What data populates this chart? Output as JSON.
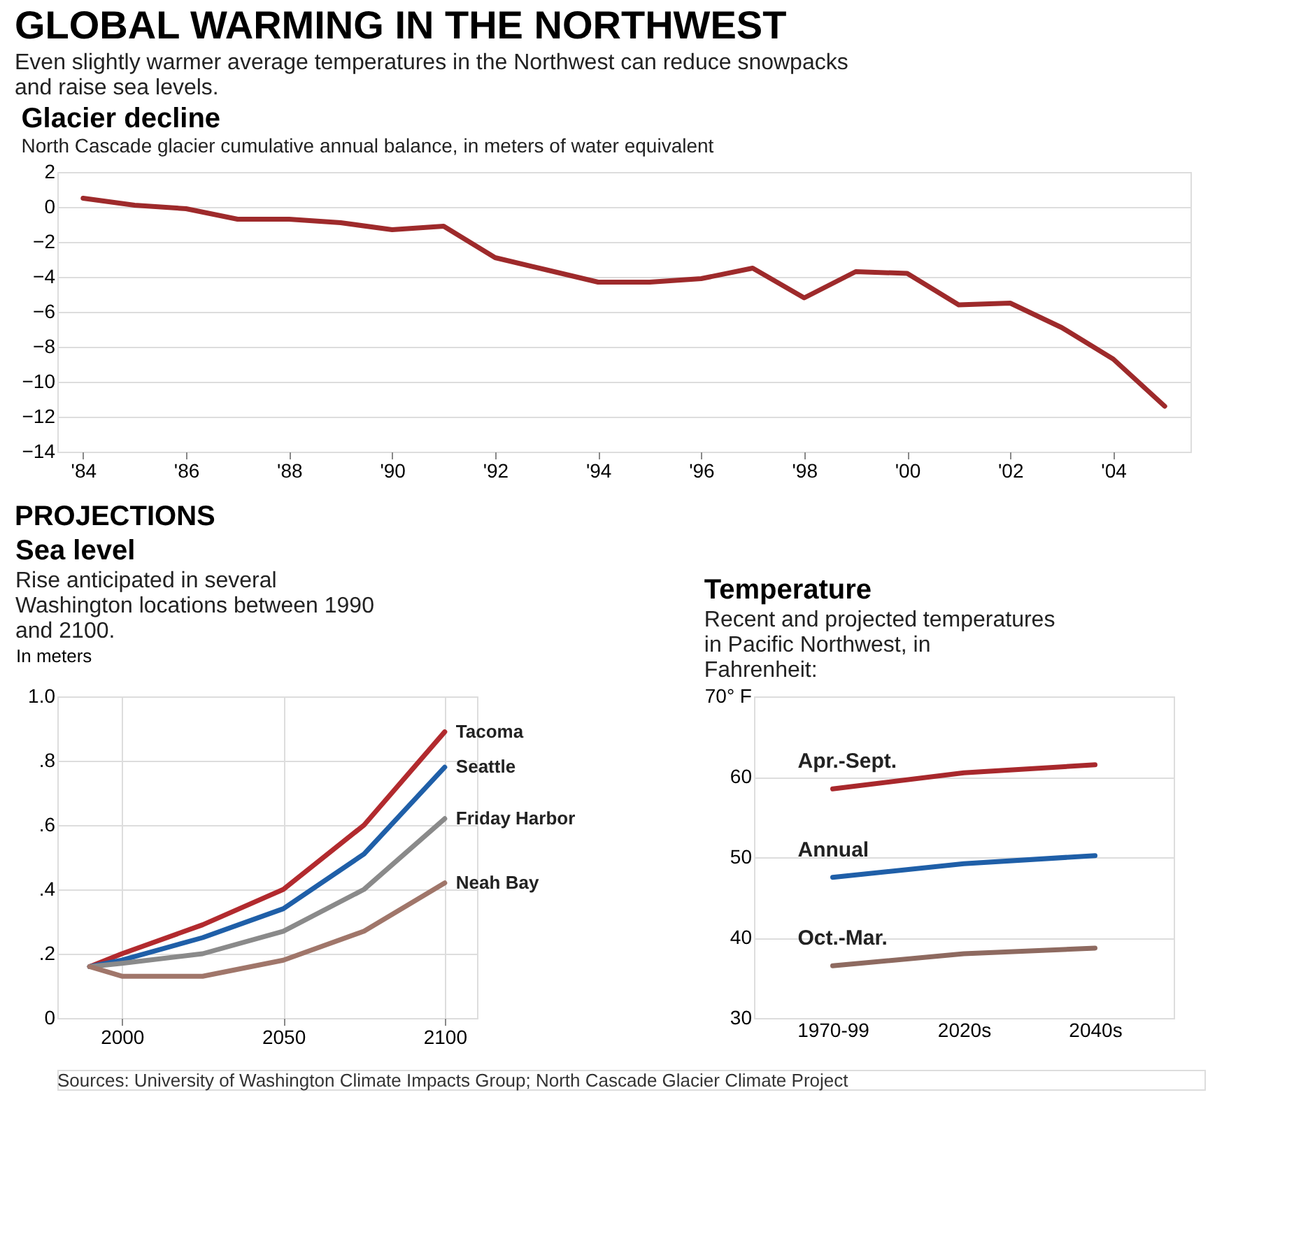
{
  "chart_data": [
    {
      "type": "line",
      "title": "GLOBAL WARMING IN THE NORTHWEST",
      "subtitle": "Even slightly warmer average temperatures in the Northwest can reduce snowpacks and raise sea levels.",
      "annotations": [
        "Glacier decline",
        "North Cascade glacier cumulative annual balance, in meters of water equivalent",
        "Sources: University of Washington Climate Impacts Group; North Cascade Glacier Climate Project"
      ],
      "x": [
        1984,
        1985,
        1986,
        1987,
        1988,
        1989,
        1990,
        1991,
        1992,
        1993,
        1994,
        1995,
        1996,
        1997,
        1998,
        1999,
        2000,
        2001,
        2002,
        2003,
        2004,
        2005
      ],
      "series": [
        {
          "color": "#9e2a2b",
          "values": [
            0.5,
            0.1,
            -0.1,
            -0.7,
            -0.7,
            -0.9,
            -1.3,
            -1.1,
            -2.9,
            -3.6,
            -4.3,
            -4.3,
            -4.1,
            -3.5,
            -5.2,
            -3.7,
            -3.8,
            -5.6,
            -5.5,
            -6.9,
            -8.7,
            -11.4
          ]
        }
      ],
      "xlim": [
        1983.5,
        2005.5
      ],
      "xticks": [
        {
          "value": 1984,
          "label": "'84"
        },
        {
          "value": 1986,
          "label": "'86"
        },
        {
          "value": 1988,
          "label": "'88"
        },
        {
          "value": 1990,
          "label": "'90"
        },
        {
          "value": 1992,
          "label": "'92"
        },
        {
          "value": 1994,
          "label": "'94"
        },
        {
          "value": 1996,
          "label": "'96"
        },
        {
          "value": 1998,
          "label": "'98"
        },
        {
          "value": 2000,
          "label": "'00"
        },
        {
          "value": 2002,
          "label": "'02"
        },
        {
          "value": 2004,
          "label": "'04"
        }
      ],
      "ylim": [
        -14,
        2
      ],
      "yticks": [
        -14,
        -12,
        -10,
        -8,
        -6,
        -4,
        -2,
        0,
        2
      ],
      "grid": "y"
    },
    {
      "type": "line",
      "title": "Sea level",
      "subtitle": "Rise anticipated in several Washington locations between 1990 and 2100.",
      "ylabel": "In meters",
      "annotations": [
        "PROJECTIONS"
      ],
      "x": [
        1990,
        2000,
        2025,
        2050,
        2075,
        2100
      ],
      "series": [
        {
          "name": "Tacoma",
          "color": "#b22a2e",
          "values": [
            0.16,
            0.2,
            0.29,
            0.4,
            0.6,
            0.89
          ]
        },
        {
          "name": "Seattle",
          "color": "#1f5fa8",
          "values": [
            0.16,
            0.18,
            0.25,
            0.34,
            0.51,
            0.78
          ]
        },
        {
          "name": "Friday Harbor",
          "color": "#8a8a8a",
          "values": [
            0.16,
            0.17,
            0.2,
            0.27,
            0.4,
            0.62
          ]
        },
        {
          "name": "Neah Bay",
          "color": "#a0766a",
          "values": [
            0.16,
            0.13,
            0.13,
            0.18,
            0.27,
            0.42
          ]
        }
      ],
      "xlim": [
        1980,
        2110
      ],
      "xticks": [
        2000,
        2050,
        2100
      ],
      "ylim": [
        0,
        1
      ],
      "yticks": [
        0,
        {
          "value": 0.2,
          "label": ".2"
        },
        {
          "value": 0.4,
          "label": ".4"
        },
        {
          "value": 0.6,
          "label": ".6"
        },
        {
          "value": 0.8,
          "label": ".8"
        },
        {
          "value": 1,
          "label": "1.0"
        }
      ],
      "grid": true
    },
    {
      "type": "line",
      "title": "Temperature",
      "subtitle": "Recent and projected temperatures in Pacific Northwest, in Fahrenheit:",
      "categories": [
        "1970-99",
        "2020s",
        "2040s"
      ],
      "series": [
        {
          "name": "Apr.-Sept.",
          "color": "#a8282c",
          "values": [
            58.5,
            60.5,
            61.5
          ]
        },
        {
          "name": "Annual",
          "color": "#1f5fa8",
          "values": [
            47.5,
            49.2,
            50.2
          ]
        },
        {
          "name": "Oct.-Mar.",
          "color": "#8e6a60",
          "values": [
            36.5,
            38.0,
            38.7
          ]
        }
      ],
      "ylim": [
        30,
        70
      ],
      "yticks": [
        30,
        40,
        50,
        60,
        {
          "value": 70,
          "label": "70° F"
        }
      ],
      "grid": "y"
    }
  ]
}
